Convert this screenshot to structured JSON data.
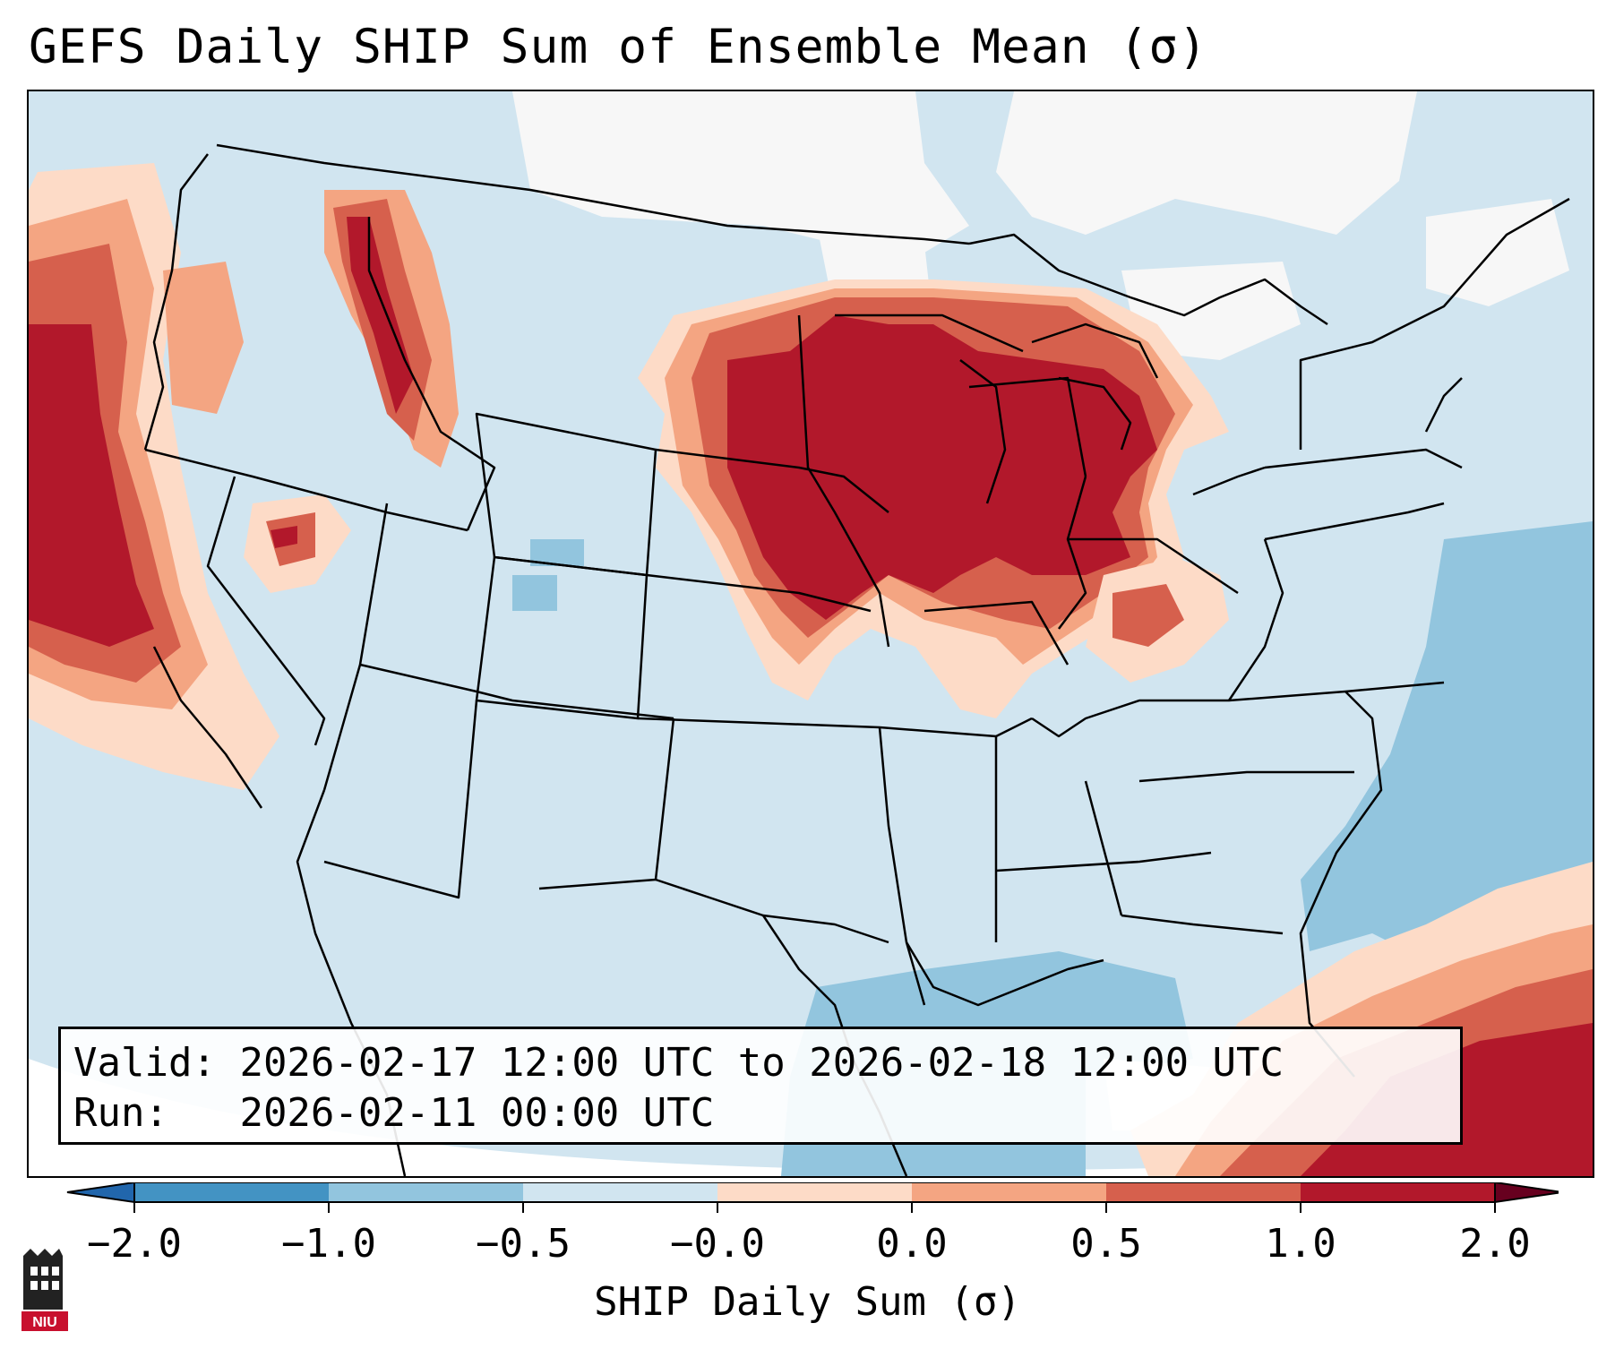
{
  "title": "GEFS Daily SHIP Sum of Ensemble Mean (σ)",
  "info": {
    "valid_label": "Valid:",
    "valid_text": "2026-02-17 12:00 UTC to 2026-02-18 12:00 UTC",
    "run_label": "Run:  ",
    "run_text": "2026-02-11 00:00 UTC"
  },
  "colorbar": {
    "label": "SHIP Daily Sum (σ)",
    "ticks": [
      "−2.0",
      "−1.0",
      "−0.5",
      "−0.0",
      "0.0",
      "0.5",
      "1.0",
      "2.0"
    ],
    "colors": [
      "#4393c3",
      "#92c5de",
      "#d1e5f0",
      "#f7f7f7",
      "#fddbc7",
      "#f4a582",
      "#d6604d",
      "#b2182b"
    ],
    "extend": "both"
  },
  "map": {
    "region": "Contiguous United States",
    "background_color": "#d1e5f0"
  },
  "logo": {
    "text": "NIU",
    "icon": "niu-logo-icon"
  }
}
